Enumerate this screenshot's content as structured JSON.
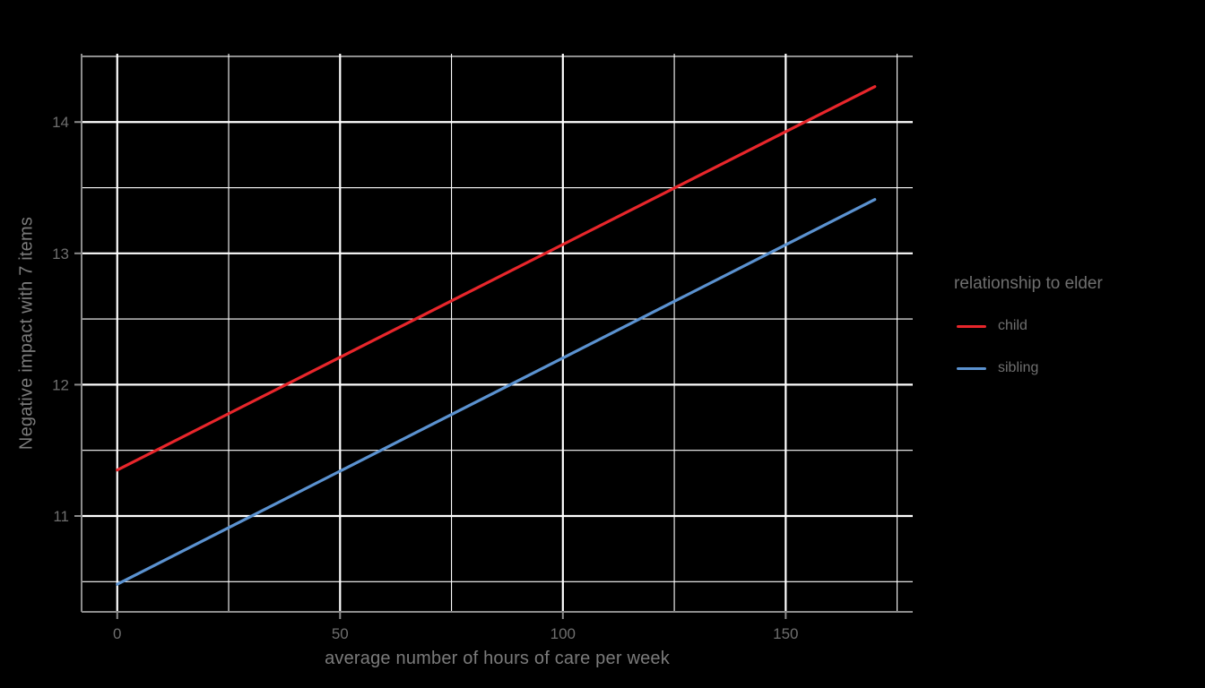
{
  "chart_data": {
    "type": "line",
    "title": "",
    "xlabel": "average number of hours of care per week",
    "ylabel": "Negative impact with 7 items",
    "xlim": [
      -8,
      178.5
    ],
    "ylim": [
      10.27,
      14.52
    ],
    "x_major_ticks": [
      0,
      50,
      100,
      150
    ],
    "x_minor_ticks": [
      25,
      75,
      125,
      175
    ],
    "y_major_ticks": [
      11,
      12,
      13,
      14
    ],
    "y_minor_ticks": [
      10.5,
      11.5,
      12.5,
      13.5,
      14.5
    ],
    "grid": true,
    "legend": {
      "title": "relationship to elder",
      "position": "right"
    },
    "series": [
      {
        "name": "child",
        "color": "#e8262b",
        "points": [
          [
            0,
            11.35
          ],
          [
            170,
            14.27
          ]
        ]
      },
      {
        "name": "sibling",
        "color": "#5b92d0",
        "points": [
          [
            0,
            10.48
          ],
          [
            170,
            13.41
          ]
        ]
      }
    ]
  },
  "style": {
    "background": "#000000",
    "grid_major_color": "#ffffff",
    "grid_minor_color": "#ffffff",
    "axis_line_color": "#8c8c8c",
    "tick_color": "#8c8c8c",
    "tick_label_color": "#6e6e6e",
    "axis_title_color": "#7b7b7b",
    "legend_text_color": "#6f6f6f"
  }
}
